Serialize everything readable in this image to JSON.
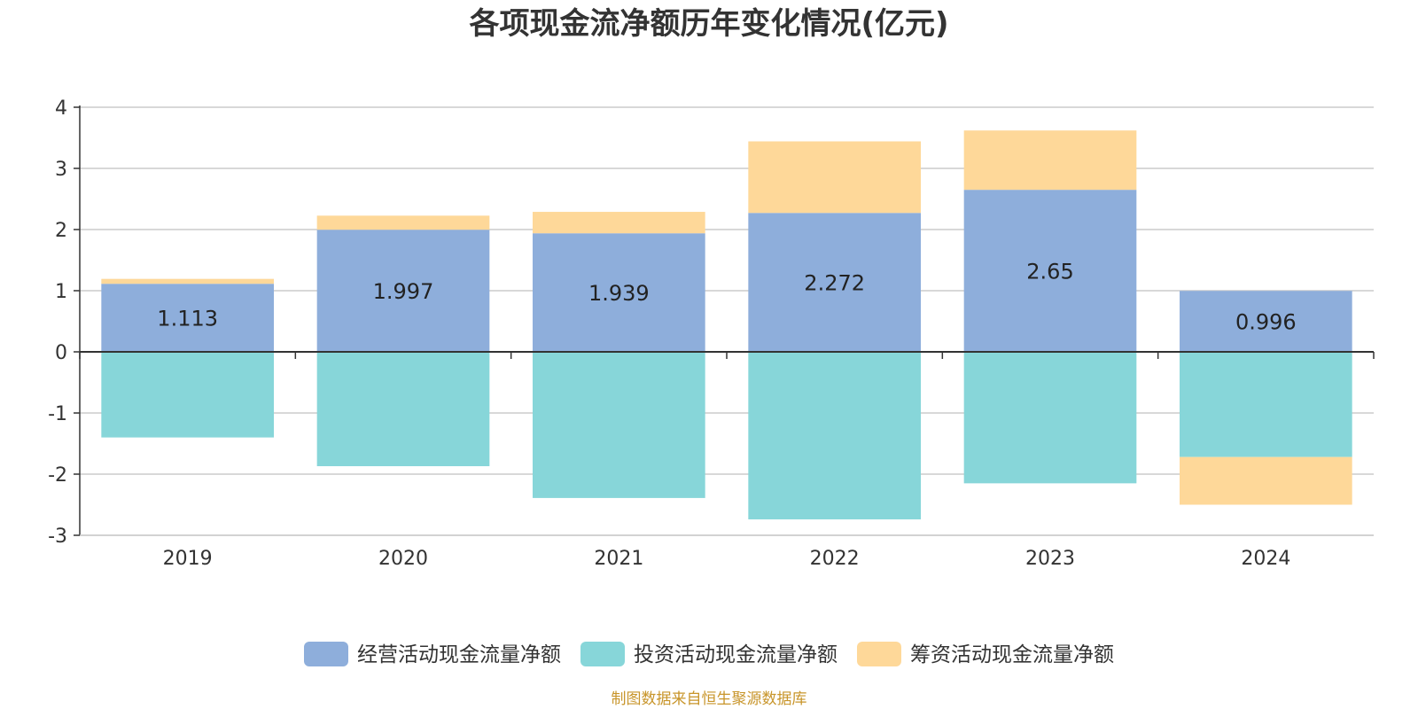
{
  "chart_data": {
    "type": "bar",
    "stacked": true,
    "title": "各项现金流净额历年变化情况(亿元)",
    "xlabel": "",
    "ylabel": "",
    "categories": [
      "2019",
      "2020",
      "2021",
      "2022",
      "2023",
      "2024"
    ],
    "ylim": [
      -3,
      4
    ],
    "yticks": [
      4,
      3,
      2,
      1,
      0,
      -1,
      -2,
      -3
    ],
    "grid": true,
    "legend_position": "bottom",
    "series": [
      {
        "name": "经营活动现金流量净额",
        "color": "#8eaedb",
        "values": [
          1.113,
          1.997,
          1.939,
          2.272,
          2.65,
          0.996
        ],
        "show_labels": true
      },
      {
        "name": "投资活动现金流量净额",
        "color": "#87d6d9",
        "values": [
          -1.4,
          -1.87,
          -2.39,
          -2.74,
          -2.15,
          -1.72
        ],
        "show_labels": false
      },
      {
        "name": "筹资活动现金流量净额",
        "color": "#fed899",
        "values": [
          0.08,
          0.23,
          0.35,
          1.17,
          0.97,
          -0.78
        ],
        "show_labels": false
      }
    ],
    "source": "制图数据来自恒生聚源数据库",
    "source_color": "#c8952a"
  }
}
